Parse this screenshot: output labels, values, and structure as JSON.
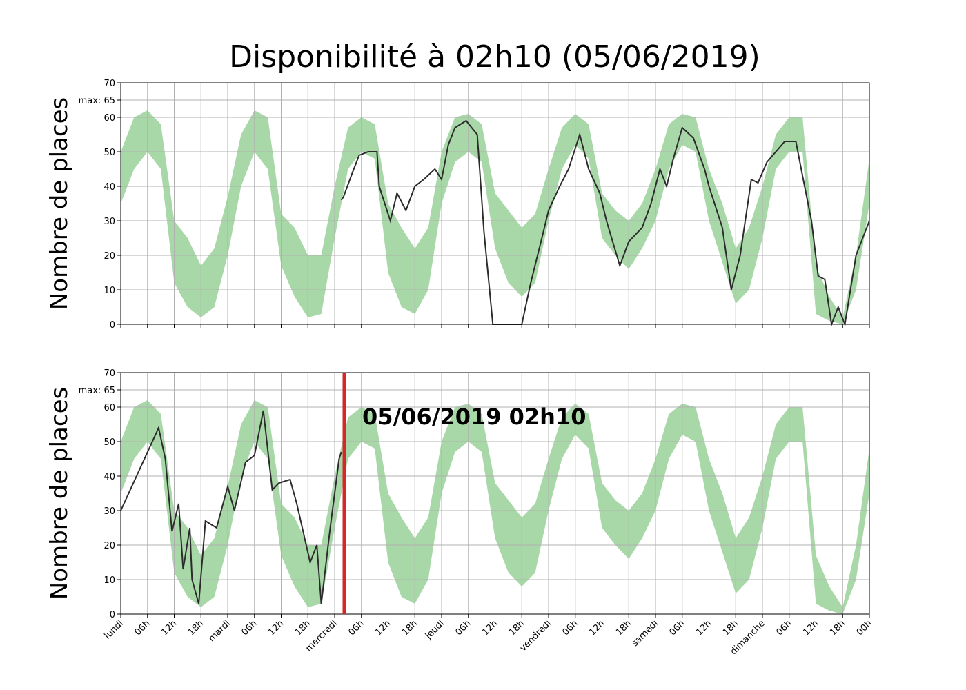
{
  "title": "Disponibilité à 02h10 (05/06/2019)",
  "chart_data": [
    {
      "type": "line",
      "ylabel": "Nombre de places",
      "grid": true,
      "xlim": [
        0,
        168
      ],
      "ylim": [
        0,
        70
      ],
      "yticks": [
        0,
        10,
        20,
        30,
        40,
        50,
        60,
        {
          "value": 65,
          "label": "max: 65"
        },
        70
      ],
      "xticks": [
        0,
        6,
        12,
        18,
        24,
        30,
        36,
        42,
        48,
        54,
        60,
        66,
        72,
        78,
        84,
        90,
        96,
        102,
        108,
        114,
        120,
        126,
        132,
        138,
        144,
        150,
        156,
        162,
        168
      ],
      "band": {
        "color": "#a8d8a8",
        "x": [
          0,
          3,
          6,
          9,
          12,
          15,
          18,
          21,
          24,
          27,
          30,
          33,
          36,
          39,
          42,
          45,
          48,
          51,
          54,
          57,
          60,
          63,
          66,
          69,
          72,
          75,
          78,
          81,
          84,
          87,
          90,
          93,
          96,
          99,
          102,
          105,
          108,
          111,
          114,
          117,
          120,
          123,
          126,
          129,
          132,
          135,
          138,
          141,
          144,
          147,
          150,
          153,
          156,
          159,
          162,
          165,
          168
        ],
        "lower": [
          35,
          45,
          50,
          45,
          12,
          5,
          2,
          5,
          20,
          40,
          50,
          45,
          17,
          8,
          2,
          3,
          25,
          45,
          50,
          48,
          15,
          5,
          3,
          10,
          35,
          47,
          50,
          47,
          22,
          12,
          8,
          12,
          30,
          45,
          52,
          48,
          25,
          20,
          16,
          22,
          30,
          45,
          52,
          50,
          30,
          18,
          6,
          10,
          25,
          45,
          50,
          50,
          3,
          1,
          0,
          10,
          35
        ],
        "upper": [
          50,
          60,
          62,
          58,
          30,
          25,
          17,
          22,
          37,
          55,
          62,
          60,
          32,
          28,
          20,
          20,
          40,
          57,
          60,
          58,
          35,
          28,
          22,
          28,
          50,
          60,
          61,
          58,
          38,
          33,
          28,
          32,
          45,
          57,
          61,
          58,
          38,
          33,
          30,
          35,
          45,
          58,
          61,
          60,
          45,
          35,
          22,
          28,
          40,
          55,
          60,
          60,
          17,
          8,
          2,
          20,
          48
        ]
      },
      "series": [
        {
          "color": "#2b2b2b",
          "x": [
            49.5,
            50,
            52,
            53.5,
            55.5,
            57.5,
            58,
            60.5,
            62,
            64,
            66,
            68,
            70.5,
            72,
            73.5,
            75,
            77.5,
            80,
            81.5,
            83.5,
            90,
            92,
            94.5,
            96,
            98.5,
            100.5,
            103,
            105,
            107.5,
            109,
            112,
            114,
            117,
            119,
            121,
            122.5,
            124,
            126,
            128.5,
            131,
            132,
            135,
            137,
            139,
            141.5,
            143,
            145,
            147,
            149,
            151.5,
            153,
            155,
            156.5,
            158,
            159.5,
            161,
            162.5,
            165,
            168
          ],
          "values": [
            36,
            37,
            44,
            49,
            50,
            50,
            40,
            30,
            38,
            33,
            40,
            42,
            45,
            42,
            52,
            57,
            59,
            55,
            27,
            0,
            0,
            12,
            25,
            33,
            40,
            45,
            55,
            45,
            38,
            30,
            17,
            24,
            28,
            35,
            45,
            40,
            48,
            57,
            54,
            45,
            40,
            28,
            10,
            20,
            42,
            41,
            47,
            50,
            53,
            53,
            43,
            30,
            14,
            13,
            0,
            5,
            0,
            20,
            30
          ]
        }
      ]
    },
    {
      "type": "line",
      "ylabel": "Nombre de places",
      "grid": true,
      "xlim": [
        0,
        168
      ],
      "ylim": [
        0,
        70
      ],
      "yticks": [
        0,
        10,
        20,
        30,
        40,
        50,
        60,
        {
          "value": 65,
          "label": "max: 65"
        },
        70
      ],
      "xticks": [
        {
          "value": 0,
          "label": "lundi"
        },
        {
          "value": 6,
          "label": "06h"
        },
        {
          "value": 12,
          "label": "12h"
        },
        {
          "value": 18,
          "label": "18h"
        },
        {
          "value": 24,
          "label": "mardi"
        },
        {
          "value": 30,
          "label": "06h"
        },
        {
          "value": 36,
          "label": "12h"
        },
        {
          "value": 42,
          "label": "18h"
        },
        {
          "value": 48,
          "label": "mercredi"
        },
        {
          "value": 54,
          "label": "06h"
        },
        {
          "value": 60,
          "label": "12h"
        },
        {
          "value": 66,
          "label": "18h"
        },
        {
          "value": 72,
          "label": "jeudi"
        },
        {
          "value": 78,
          "label": "06h"
        },
        {
          "value": 84,
          "label": "12h"
        },
        {
          "value": 90,
          "label": "18h"
        },
        {
          "value": 96,
          "label": "vendredi"
        },
        {
          "value": 102,
          "label": "06h"
        },
        {
          "value": 108,
          "label": "12h"
        },
        {
          "value": 114,
          "label": "18h"
        },
        {
          "value": 120,
          "label": "samedi"
        },
        {
          "value": 126,
          "label": "06h"
        },
        {
          "value": 132,
          "label": "12h"
        },
        {
          "value": 138,
          "label": "18h"
        },
        {
          "value": 144,
          "label": "dimanche"
        },
        {
          "value": 150,
          "label": "06h"
        },
        {
          "value": 156,
          "label": "12h"
        },
        {
          "value": 162,
          "label": "18h"
        },
        {
          "value": 168,
          "label": "00h"
        }
      ],
      "band": {
        "color": "#a8d8a8",
        "x": [
          0,
          3,
          6,
          9,
          12,
          15,
          18,
          21,
          24,
          27,
          30,
          33,
          36,
          39,
          42,
          45,
          48,
          51,
          54,
          57,
          60,
          63,
          66,
          69,
          72,
          75,
          78,
          81,
          84,
          87,
          90,
          93,
          96,
          99,
          102,
          105,
          108,
          111,
          114,
          117,
          120,
          123,
          126,
          129,
          132,
          135,
          138,
          141,
          144,
          147,
          150,
          153,
          156,
          159,
          162,
          165,
          168
        ],
        "lower": [
          35,
          45,
          50,
          45,
          12,
          5,
          2,
          5,
          20,
          40,
          50,
          45,
          17,
          8,
          2,
          3,
          25,
          45,
          50,
          48,
          15,
          5,
          3,
          10,
          35,
          47,
          50,
          47,
          22,
          12,
          8,
          12,
          30,
          45,
          52,
          48,
          25,
          20,
          16,
          22,
          30,
          45,
          52,
          50,
          30,
          18,
          6,
          10,
          25,
          45,
          50,
          50,
          3,
          1,
          0,
          10,
          35
        ],
        "upper": [
          50,
          60,
          62,
          58,
          30,
          25,
          17,
          22,
          37,
          55,
          62,
          60,
          32,
          28,
          20,
          20,
          40,
          57,
          60,
          58,
          35,
          28,
          22,
          28,
          50,
          60,
          61,
          58,
          38,
          33,
          28,
          32,
          45,
          57,
          61,
          58,
          38,
          33,
          30,
          35,
          45,
          58,
          61,
          60,
          45,
          35,
          22,
          28,
          40,
          55,
          60,
          60,
          17,
          8,
          2,
          20,
          48
        ]
      },
      "series": [
        {
          "color": "#2b2b2b",
          "x": [
            0,
            8.5,
            10,
            11.5,
            13,
            14,
            15.5,
            16,
            17.5,
            19,
            21.5,
            24,
            25.5,
            28,
            30,
            32,
            34,
            35.5,
            38,
            39.5,
            42.5,
            44,
            45,
            47,
            49,
            49.5
          ],
          "values": [
            30,
            54,
            45,
            24,
            32,
            13,
            25,
            10,
            3,
            27,
            25,
            37,
            30,
            44,
            46,
            59,
            36,
            38,
            39,
            32,
            15,
            20,
            3,
            25,
            45,
            47
          ]
        }
      ],
      "marker": {
        "x": 50.17,
        "color": "#d62728",
        "label": "05/06/2019 02h10"
      }
    }
  ]
}
